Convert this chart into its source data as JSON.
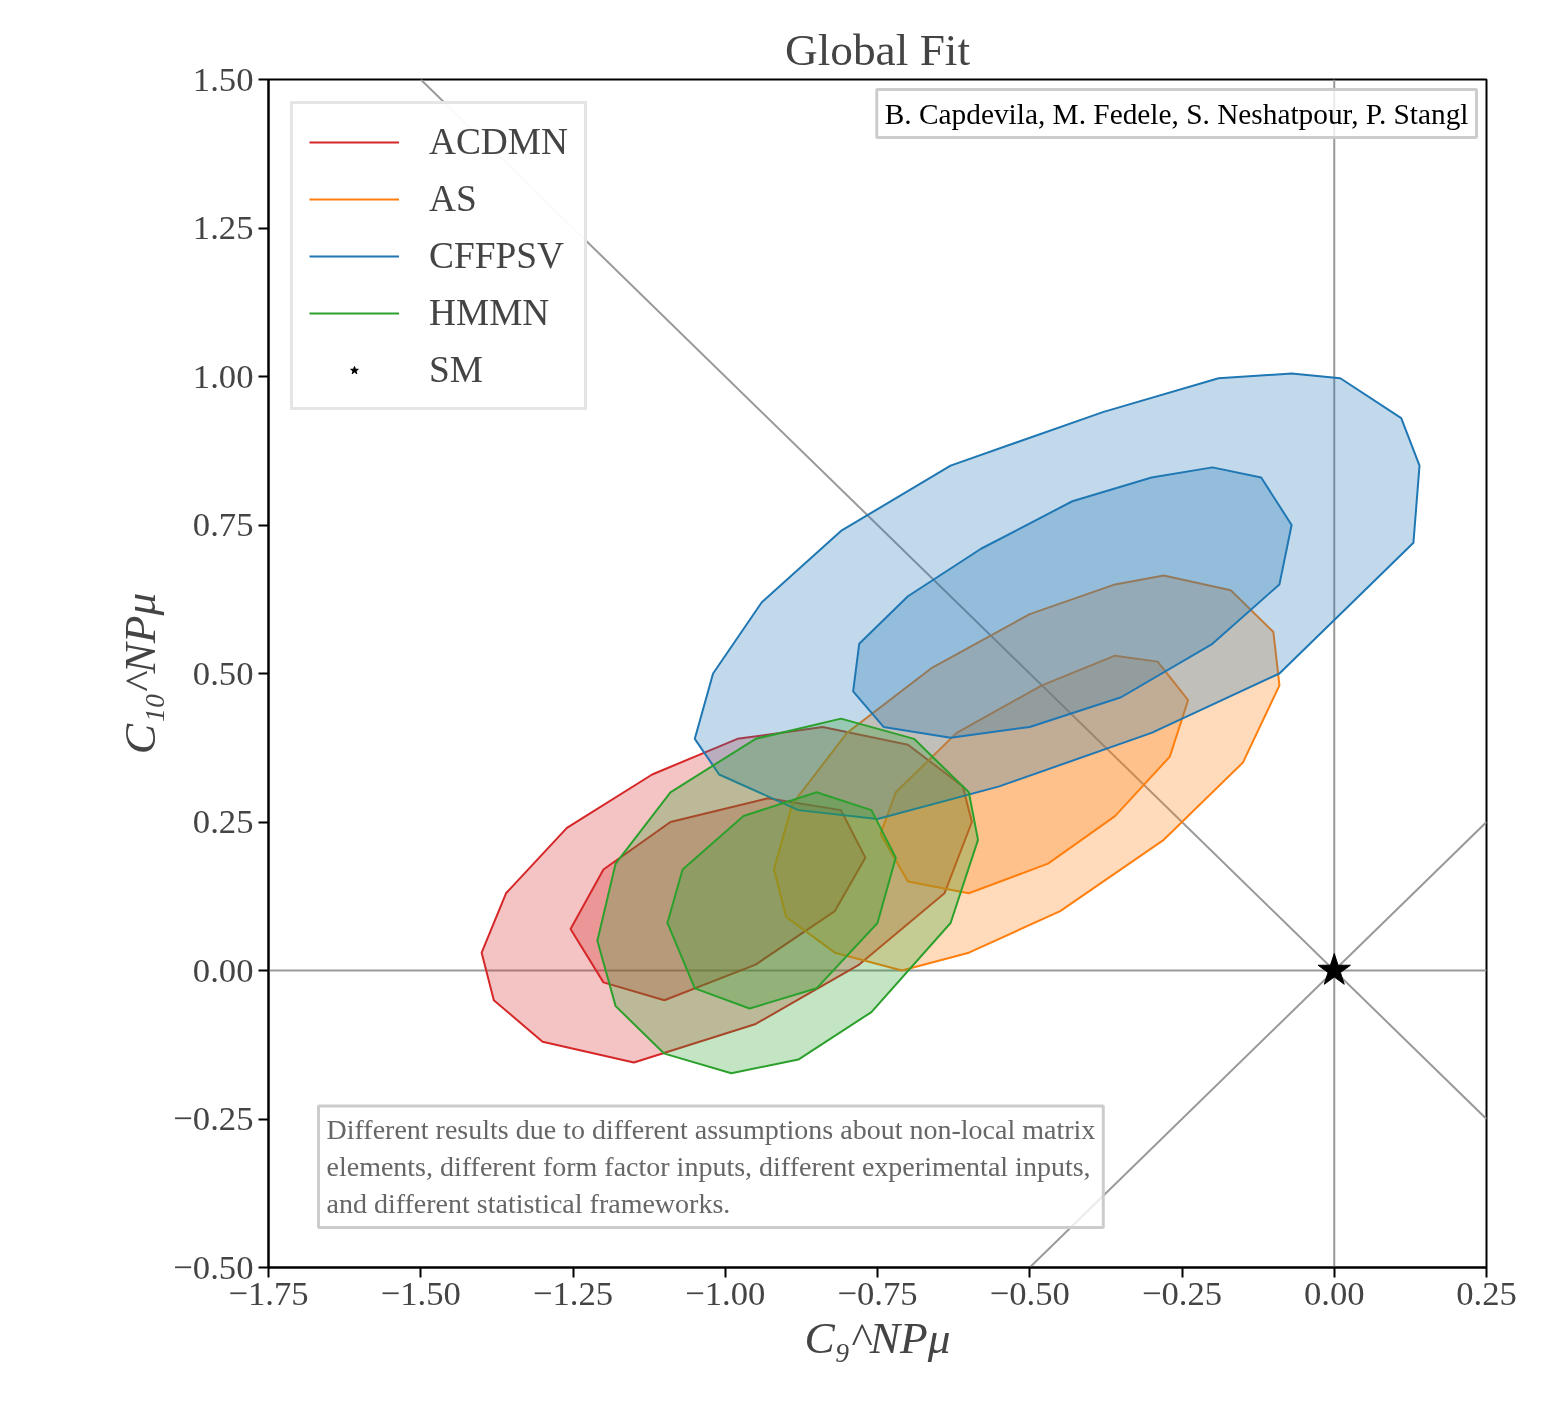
{
  "chart_data": {
    "type": "area",
    "title": "Global Fit",
    "xlabel": "C₉^NPμ",
    "ylabel": "C₁₀^NPμ",
    "xlim": [
      -1.75,
      0.25
    ],
    "ylim": [
      -0.5,
      1.5
    ],
    "xticks": [
      {
        "value": -1.75,
        "label": "−1.75"
      },
      {
        "value": -1.5,
        "label": "−1.50"
      },
      {
        "value": -1.25,
        "label": "−1.25"
      },
      {
        "value": -1.0,
        "label": "−1.00"
      },
      {
        "value": -0.75,
        "label": "−0.75"
      },
      {
        "value": -0.5,
        "label": "−0.50"
      },
      {
        "value": -0.25,
        "label": "−0.25"
      },
      {
        "value": 0,
        "label": "0.00"
      },
      {
        "value": 0.25,
        "label": "0.25"
      }
    ],
    "yticks": [
      {
        "value": -0.5,
        "label": "−0.50"
      },
      {
        "value": -0.25,
        "label": "−0.25"
      },
      {
        "value": 0,
        "label": "0.00"
      },
      {
        "value": 0.25,
        "label": "0.25"
      },
      {
        "value": 0.5,
        "label": "0.50"
      },
      {
        "value": 0.75,
        "label": "0.75"
      },
      {
        "value": 1.0,
        "label": "1.00"
      },
      {
        "value": 1.25,
        "label": "1.25"
      },
      {
        "value": 1.5,
        "label": "1.50"
      }
    ],
    "grid": false,
    "legend": "top left",
    "series": [
      {
        "type": "line",
        "color": "#999999",
        "x": [
          0,
          0
        ],
        "values": [
          -0.5,
          1.5
        ]
      },
      {
        "type": "line",
        "color": "#999999",
        "x": [
          -1.75,
          0.25
        ],
        "values": [
          0,
          0
        ]
      },
      {
        "type": "line",
        "color": "#999999",
        "x": [
          -1.5,
          0.25
        ],
        "values": [
          1.5,
          -0.25
        ]
      },
      {
        "type": "line",
        "color": "#999999",
        "x": [
          -0.5,
          0.25
        ],
        "values": [
          -0.5,
          0.25
        ]
      },
      {
        "name": "ACDMN",
        "color": "#d62728",
        "x": [
          -1.4,
          -1.36,
          -1.26,
          -1.12,
          -0.98,
          -0.84,
          -0.7,
          -0.61,
          -0.595,
          -0.64,
          -0.78,
          -0.95,
          -1.15,
          -1.3,
          -1.38
        ],
        "values": [
          0.03,
          0.13,
          0.24,
          0.33,
          0.39,
          0.41,
          0.38,
          0.31,
          0.25,
          0.13,
          0.01,
          -0.09,
          -0.155,
          -0.12,
          -0.05
        ]
      },
      {
        "color": "#d62728",
        "x": [
          -1.254,
          -1.2,
          -1.09,
          -0.93,
          -0.81,
          -0.77,
          -0.82,
          -0.95,
          -1.1,
          -1.2
        ],
        "values": [
          0.07,
          0.17,
          0.25,
          0.29,
          0.27,
          0.19,
          0.1,
          0.01,
          -0.05,
          -0.02
        ]
      },
      {
        "name": "AS",
        "color": "#ff7f0e",
        "x": [
          -0.92,
          -0.89,
          -0.8,
          -0.66,
          -0.5,
          -0.36,
          -0.28,
          -0.17,
          -0.1,
          -0.09,
          -0.15,
          -0.28,
          -0.45,
          -0.6,
          -0.71,
          -0.82,
          -0.9
        ],
        "values": [
          0.17,
          0.28,
          0.4,
          0.51,
          0.6,
          0.65,
          0.665,
          0.64,
          0.57,
          0.48,
          0.35,
          0.22,
          0.1,
          0.03,
          0.0,
          0.03,
          0.09
        ]
      },
      {
        "color": "#ff7f0e",
        "x": [
          -0.745,
          -0.72,
          -0.62,
          -0.48,
          -0.36,
          -0.29,
          -0.24,
          -0.27,
          -0.36,
          -0.47,
          -0.6,
          -0.7
        ],
        "values": [
          0.23,
          0.3,
          0.4,
          0.48,
          0.53,
          0.52,
          0.455,
          0.36,
          0.26,
          0.18,
          0.13,
          0.15
        ]
      },
      {
        "name": "CFFPSV",
        "color": "#1f77b4",
        "x": [
          -1.05,
          -1.02,
          -0.94,
          -0.81,
          -0.63,
          -0.38,
          -0.19,
          -0.07,
          0.01,
          0.11,
          0.14,
          0.13,
          0.03,
          -0.09,
          -0.3,
          -0.55,
          -0.75,
          -0.88,
          -1.01
        ],
        "values": [
          0.39,
          0.5,
          0.62,
          0.74,
          0.85,
          0.94,
          0.997,
          1.005,
          0.997,
          0.93,
          0.85,
          0.72,
          0.62,
          0.5,
          0.4,
          0.31,
          0.255,
          0.27,
          0.33
        ]
      },
      {
        "color": "#1f77b4",
        "x": [
          -0.79,
          -0.78,
          -0.7,
          -0.58,
          -0.43,
          -0.3,
          -0.2,
          -0.12,
          -0.07,
          -0.09,
          -0.2,
          -0.35,
          -0.5,
          -0.63,
          -0.74
        ],
        "values": [
          0.47,
          0.55,
          0.63,
          0.71,
          0.79,
          0.83,
          0.847,
          0.83,
          0.75,
          0.65,
          0.55,
          0.46,
          0.41,
          0.392,
          0.41
        ]
      },
      {
        "name": "HMMN",
        "color": "#2ca02c",
        "x": [
          -1.21,
          -1.18,
          -1.09,
          -0.95,
          -0.81,
          -0.69,
          -0.6,
          -0.585,
          -0.63,
          -0.76,
          -0.88,
          -0.99,
          -1.1,
          -1.18
        ],
        "values": [
          0.05,
          0.18,
          0.3,
          0.39,
          0.424,
          0.39,
          0.3,
          0.22,
          0.08,
          -0.07,
          -0.15,
          -0.173,
          -0.14,
          -0.06
        ]
      },
      {
        "color": "#2ca02c",
        "x": [
          -1.095,
          -1.07,
          -0.97,
          -0.85,
          -0.76,
          -0.72,
          -0.75,
          -0.85,
          -0.96,
          -1.05
        ],
        "values": [
          0.08,
          0.17,
          0.26,
          0.3,
          0.27,
          0.19,
          0.08,
          -0.03,
          -0.064,
          -0.03
        ]
      },
      {
        "name": "SM",
        "type": "scatter",
        "marker": "star",
        "color": "#000000",
        "x": [
          0
        ],
        "values": [
          0
        ]
      }
    ],
    "annotations": [
      "B. Capdevila, M. Fedele, S. Neshatpour, P. Stangl",
      "Different results due to different assumptions about non-local matrix\nelements, different form factor inputs, different experimental inputs,\nand different statistical frameworks."
    ]
  }
}
